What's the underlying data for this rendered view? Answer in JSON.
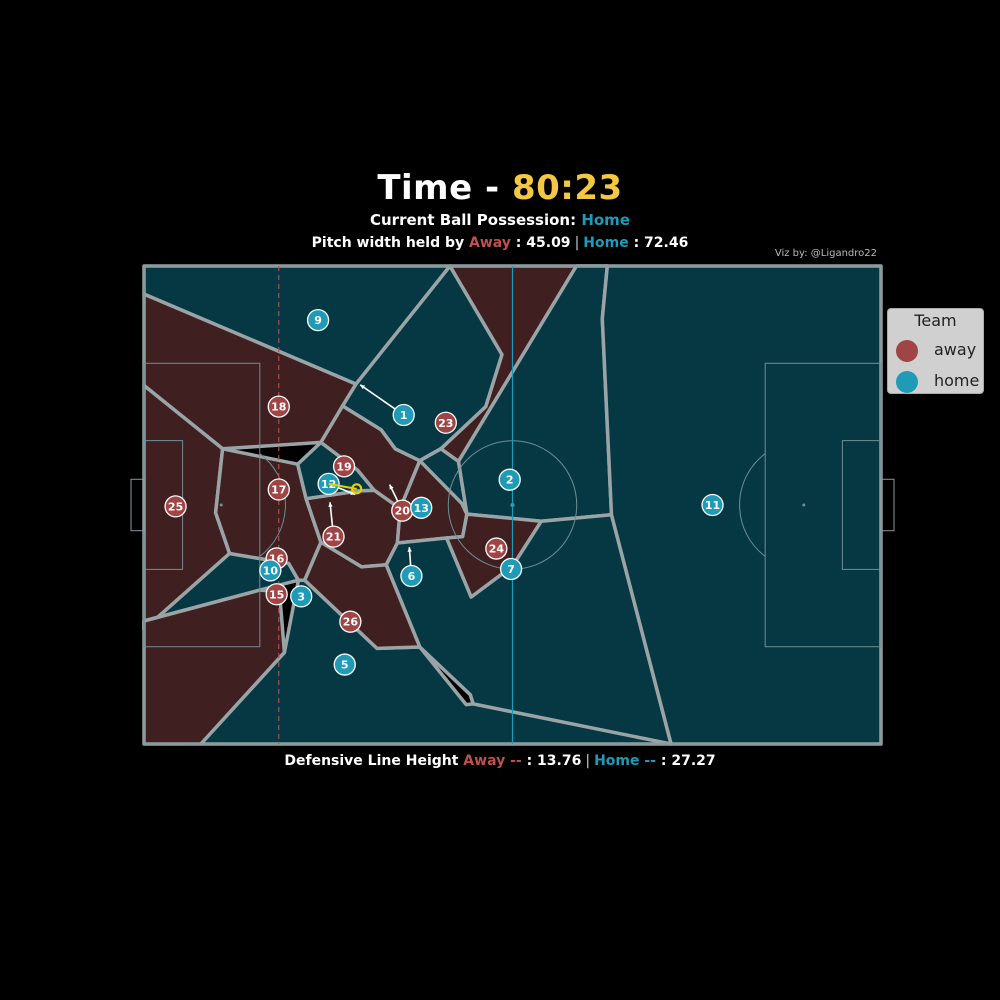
{
  "title": {
    "prefix": "Time - ",
    "value": "80:23"
  },
  "possession": {
    "label": "Current Ball Possession: ",
    "team": "Home"
  },
  "width_line": {
    "label": "Pitch width held by ",
    "away_label": "Away",
    "away_value": " : 45.09",
    "separator": "|",
    "home_label": "Home",
    "home_value": " : 72.46"
  },
  "defensive_line": {
    "label": "Defensive Line Height ",
    "away_label": "Away --",
    "away_value": " : 13.76",
    "separator": "|",
    "home_label": "Home --",
    "home_value": " : 27.27"
  },
  "credit": "Viz by: @Ligandro22",
  "legend": {
    "title": "Team",
    "items": [
      "away",
      "home"
    ]
  },
  "colors": {
    "away": "#a04545",
    "home": "#1f9bb8",
    "away_region": "#3f1f1f",
    "home_region": "#063844",
    "time": "#f5c842",
    "ball": "#e8d000"
  },
  "chart_data": {
    "type": "scatter",
    "xlim": [
      0,
      105
    ],
    "ylim": [
      0,
      68
    ],
    "defensive_line_x": {
      "away": 19.2,
      "home": 52.5
    },
    "ball": [
      30.3,
      36.3
    ],
    "players": [
      {
        "team": "away",
        "number": "18",
        "x": 19.2,
        "y": 48.0
      },
      {
        "team": "away",
        "number": "17",
        "x": 19.2,
        "y": 36.2
      },
      {
        "team": "away",
        "number": "25",
        "x": 4.5,
        "y": 33.8
      },
      {
        "team": "away",
        "number": "16",
        "x": 18.9,
        "y": 26.4
      },
      {
        "team": "away",
        "number": "15",
        "x": 18.9,
        "y": 21.3
      },
      {
        "team": "away",
        "number": "19",
        "x": 28.5,
        "y": 39.5
      },
      {
        "team": "away",
        "number": "21",
        "x": 27.0,
        "y": 29.5
      },
      {
        "team": "away",
        "number": "20",
        "x": 36.8,
        "y": 33.2
      },
      {
        "team": "away",
        "number": "23",
        "x": 43.0,
        "y": 45.7
      },
      {
        "team": "away",
        "number": "24",
        "x": 50.2,
        "y": 27.8
      },
      {
        "team": "away",
        "number": "26",
        "x": 29.4,
        "y": 17.4
      },
      {
        "team": "home",
        "number": "9",
        "x": 24.8,
        "y": 60.3
      },
      {
        "team": "home",
        "number": "1",
        "x": 37.0,
        "y": 46.8,
        "vx": -6.2,
        "vy": 4.3
      },
      {
        "team": "home",
        "number": "12",
        "x": 26.3,
        "y": 37.0,
        "vx": 3.8,
        "vy": -1.5
      },
      {
        "team": "home",
        "number": "13",
        "x": 39.5,
        "y": 33.6,
        "vx": 0.4,
        "vy": 0.9
      },
      {
        "team": "home",
        "number": "2",
        "x": 52.1,
        "y": 37.6
      },
      {
        "team": "home",
        "number": "11",
        "x": 81.0,
        "y": 34.0
      },
      {
        "team": "home",
        "number": "6",
        "x": 38.1,
        "y": 23.9,
        "vx": -0.3,
        "vy": 4.1
      },
      {
        "team": "home",
        "number": "7",
        "x": 52.3,
        "y": 24.9
      },
      {
        "team": "home",
        "number": "10",
        "x": 18.0,
        "y": 24.7
      },
      {
        "team": "home",
        "number": "3",
        "x": 22.4,
        "y": 21.0
      },
      {
        "team": "home",
        "number": "5",
        "x": 28.6,
        "y": 11.3
      }
    ],
    "velocity_note_players": [
      {
        "number": "21",
        "vx": -0.5,
        "vy": 4.9
      },
      {
        "number": "20",
        "vx": -1.8,
        "vy": 3.7
      }
    ],
    "regions": [
      {
        "team": "home",
        "points": [
          [
            0,
            64
          ],
          [
            0,
            68
          ],
          [
            43.6,
            68
          ],
          [
            30.2,
            51.2
          ]
        ]
      },
      {
        "team": "away",
        "points": [
          [
            0,
            64
          ],
          [
            30.2,
            51.2
          ],
          [
            28.3,
            48.1
          ],
          [
            25.2,
            42.9
          ],
          [
            11.2,
            42.0
          ],
          [
            0,
            51.0
          ]
        ]
      },
      {
        "team": "away",
        "points": [
          [
            0,
            51.0
          ],
          [
            11.2,
            42.0
          ],
          [
            10.2,
            32.9
          ],
          [
            12.2,
            27.1
          ],
          [
            0,
            16.3
          ]
        ]
      },
      {
        "team": "away",
        "points": [
          [
            0,
            16.3
          ],
          [
            12.2,
            27.1
          ],
          [
            16.5,
            21.9
          ],
          [
            0,
            17.5
          ]
        ]
      },
      {
        "team": "home",
        "points": [
          [
            0,
            16.3
          ],
          [
            0,
            17.5
          ],
          [
            16.5,
            21.9
          ],
          [
            22.0,
            23.3
          ],
          [
            20.6,
            25.7
          ],
          [
            12.2,
            27.1
          ]
        ]
      },
      {
        "team": "away",
        "points": [
          [
            0,
            0
          ],
          [
            8.1,
            0
          ],
          [
            20.0,
            13.0
          ],
          [
            19.3,
            21.7
          ],
          [
            16.5,
            21.9
          ],
          [
            0,
            17.5
          ]
        ]
      },
      {
        "team": "home",
        "points": [
          [
            8.1,
            0
          ],
          [
            75.1,
            0
          ],
          [
            66.6,
            6.0
          ],
          [
            54.4,
            20.6
          ],
          [
            46.5,
            7.0
          ],
          [
            46.9,
            5.7
          ],
          [
            45.9,
            5.6
          ],
          [
            39.3,
            13.8
          ],
          [
            33.2,
            13.6
          ],
          [
            22.9,
            23.3
          ],
          [
            22.0,
            23.3
          ],
          [
            20.0,
            13.0
          ]
        ]
      },
      {
        "team": "away",
        "points": [
          [
            10.2,
            32.9
          ],
          [
            12.2,
            27.1
          ],
          [
            20.6,
            25.7
          ],
          [
            22.0,
            23.3
          ],
          [
            22.9,
            23.3
          ],
          [
            25.2,
            28.7
          ],
          [
            23.1,
            34.9
          ],
          [
            21.9,
            39.8
          ],
          [
            11.2,
            42.0
          ]
        ]
      },
      {
        "team": "away",
        "points": [
          [
            23.1,
            34.9
          ],
          [
            25.2,
            28.7
          ],
          [
            31.0,
            25.2
          ],
          [
            34.5,
            25.5
          ],
          [
            36.1,
            28.6
          ],
          [
            36.5,
            33.5
          ],
          [
            32.8,
            36.1
          ],
          [
            30.6,
            36.0
          ]
        ]
      },
      {
        "team": "home",
        "points": [
          [
            21.9,
            39.8
          ],
          [
            23.1,
            34.9
          ],
          [
            30.6,
            36.0
          ],
          [
            32.8,
            36.1
          ],
          [
            30.4,
            39.0
          ],
          [
            25.2,
            42.9
          ]
        ]
      },
      {
        "team": "away",
        "points": [
          [
            25.2,
            42.9
          ],
          [
            30.4,
            39.0
          ],
          [
            32.8,
            36.1
          ],
          [
            36.5,
            33.5
          ],
          [
            39.3,
            40.3
          ],
          [
            35.8,
            42.0
          ],
          [
            33.8,
            44.7
          ],
          [
            28.3,
            48.1
          ]
        ]
      },
      {
        "team": "home",
        "points": [
          [
            28.3,
            48.1
          ],
          [
            33.8,
            44.7
          ],
          [
            35.8,
            42.0
          ],
          [
            39.3,
            40.3
          ],
          [
            42.3,
            42.0
          ],
          [
            48.7,
            48.0
          ],
          [
            51.0,
            55.4
          ],
          [
            43.6,
            68
          ],
          [
            30.2,
            51.2
          ]
        ]
      },
      {
        "team": "away",
        "points": [
          [
            36.5,
            33.5
          ],
          [
            39.3,
            40.3
          ],
          [
            42.3,
            42.0
          ],
          [
            45.3,
            34.2
          ],
          [
            46.0,
            32.7
          ],
          [
            45.4,
            29.5
          ],
          [
            43.1,
            29.3
          ],
          [
            36.1,
            28.6
          ]
        ]
      },
      {
        "team": "away",
        "points": [
          [
            42.3,
            42.0
          ],
          [
            48.7,
            48.0
          ],
          [
            51.0,
            55.4
          ],
          [
            43.6,
            68
          ],
          [
            66.0,
            68
          ],
          [
            61.6,
            68
          ],
          [
            44.8,
            40.2
          ]
        ]
      },
      {
        "team": "home",
        "points": [
          [
            39.3,
            40.3
          ],
          [
            42.3,
            42.0
          ],
          [
            44.8,
            40.2
          ],
          [
            46.0,
            32.7
          ],
          [
            45.3,
            34.2
          ]
        ]
      },
      {
        "team": "home",
        "points": [
          [
            44.8,
            40.2
          ],
          [
            61.6,
            68
          ],
          [
            66.0,
            68
          ],
          [
            65.3,
            60.5
          ],
          [
            66.6,
            32.6
          ],
          [
            56.6,
            31.7
          ],
          [
            46.0,
            32.7
          ]
        ]
      },
      {
        "team": "away",
        "points": [
          [
            46.0,
            32.7
          ],
          [
            56.6,
            31.7
          ],
          [
            52.5,
            25.3
          ],
          [
            46.6,
            20.9
          ],
          [
            43.1,
            29.3
          ],
          [
            45.4,
            29.5
          ]
        ]
      },
      {
        "team": "home",
        "points": [
          [
            34.5,
            25.5
          ],
          [
            36.1,
            28.6
          ],
          [
            43.1,
            29.3
          ],
          [
            46.6,
            20.9
          ],
          [
            52.5,
            25.3
          ],
          [
            56.6,
            31.7
          ],
          [
            66.6,
            32.6
          ],
          [
            75.1,
            0
          ],
          [
            46.9,
            5.7
          ],
          [
            46.5,
            7.0
          ],
          [
            39.3,
            13.8
          ]
        ]
      },
      {
        "team": "away",
        "points": [
          [
            22.9,
            23.3
          ],
          [
            33.2,
            13.6
          ],
          [
            39.3,
            13.8
          ],
          [
            34.5,
            25.5
          ],
          [
            31.0,
            25.2
          ],
          [
            25.2,
            28.7
          ]
        ]
      },
      {
        "team": "home",
        "points": [
          [
            66.0,
            68
          ],
          [
            105,
            68
          ],
          [
            105,
            0
          ],
          [
            75.1,
            0
          ],
          [
            66.6,
            32.6
          ],
          [
            65.3,
            60.5
          ]
        ]
      }
    ]
  }
}
